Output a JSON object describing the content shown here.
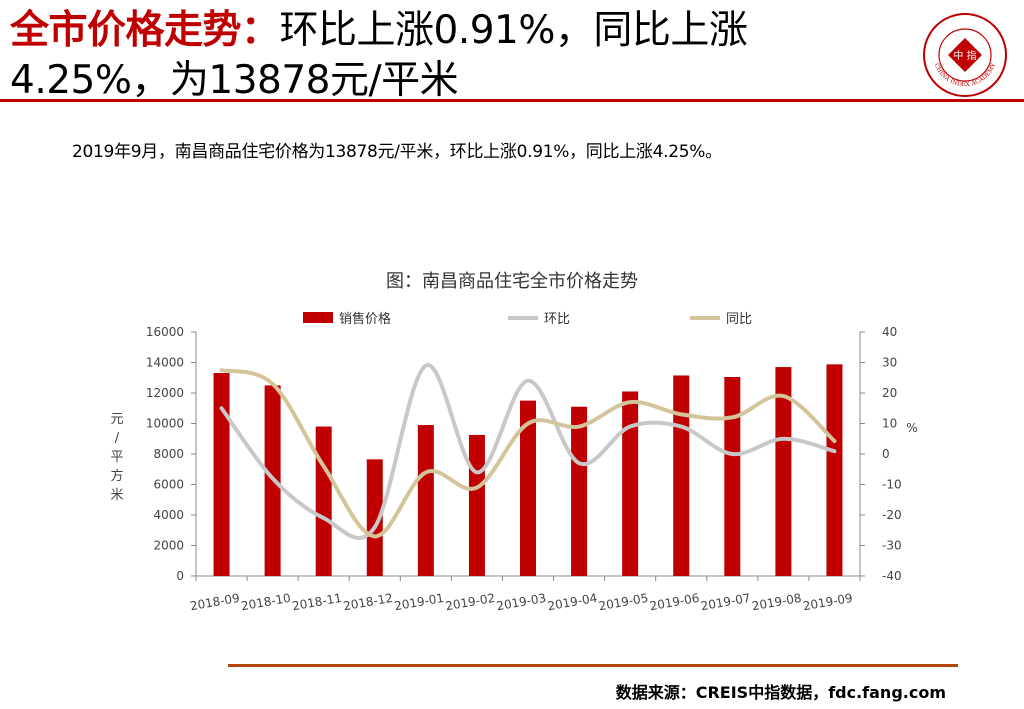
{
  "header": {
    "title_highlight": "全市价格走势：",
    "title_line1_rest": "环比上涨0.91%，同比上涨",
    "title_line2": "4.25%，为13878元/平米",
    "logo_text": "CHINA INDEX ACADEMY",
    "logo_center": "中 指"
  },
  "summary": "2019年9月，南昌商品住宅价格为13878元/平米，环比上涨0.91%，同比上涨4.25%。",
  "colors": {
    "accent": "#c00000",
    "mom": "#c8c8c8",
    "yoy": "#d4c49a",
    "footer_rule": "#b5460a"
  },
  "chart_data": {
    "type": "bar",
    "title": "图：南昌商品住宅全市价格走势",
    "categories": [
      "2018-09",
      "2018-10",
      "2018-11",
      "2018-12",
      "2019-01",
      "2019-02",
      "2019-03",
      "2019-04",
      "2019-05",
      "2019-06",
      "2019-07",
      "2019-08",
      "2019-09"
    ],
    "series": [
      {
        "name": "销售价格",
        "type": "bar",
        "axis": "left",
        "color": "#c00000",
        "values": [
          13310,
          12500,
          9800,
          7650,
          9900,
          9250,
          11500,
          11100,
          12100,
          13150,
          13050,
          13700,
          13878
        ]
      },
      {
        "name": "环比",
        "type": "line",
        "axis": "right",
        "color": "#c8c8c8",
        "values": [
          15,
          -8,
          -21,
          -24,
          29,
          -6,
          24,
          -3,
          9,
          9,
          0,
          5,
          0.91
        ]
      },
      {
        "name": "同比",
        "type": "line",
        "axis": "right",
        "color": "#d4c49a",
        "values": [
          27.5,
          23,
          -4,
          -27,
          -6,
          -11,
          10,
          9,
          17,
          13,
          12,
          19,
          4.25
        ]
      }
    ],
    "ylabel_left": "元/平方米",
    "ylabel_right": "%",
    "ylim_left": [
      0,
      16000
    ],
    "ylim_right": [
      -40,
      40
    ],
    "yticks_left": [
      "0",
      "2000",
      "4000",
      "6000",
      "8000",
      "10000",
      "12000",
      "14000",
      "16000"
    ],
    "yticks_right": [
      "-40",
      "-30",
      "-20",
      "-10",
      "0",
      "10",
      "20",
      "30",
      "40"
    ],
    "legend_position": "top",
    "grid": false
  },
  "footer": {
    "source": "数据来源：CREIS中指数据，fdc.fang.com"
  }
}
